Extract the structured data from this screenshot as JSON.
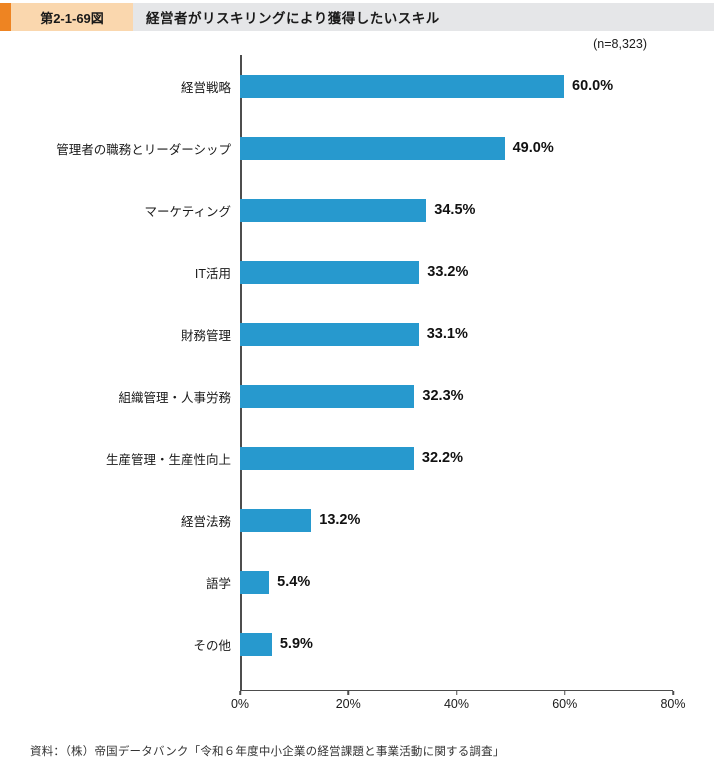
{
  "header": {
    "figure_label": "第2-1-69図",
    "title": "経営者がリスキリングにより獲得したいスキル"
  },
  "sample_note": "(n=8,323)",
  "chart_data": {
    "type": "bar",
    "orientation": "horizontal",
    "title": "経営者がリスキリングにより獲得したいスキル",
    "categories": [
      "経営戦略",
      "管理者の職務とリーダーシップ",
      "マーケティング",
      "IT活用",
      "財務管理",
      "組織管理・人事労務",
      "生産管理・生産性向上",
      "経営法務",
      "語学",
      "その他"
    ],
    "values": [
      60.0,
      49.0,
      34.5,
      33.2,
      33.1,
      32.3,
      32.2,
      13.2,
      5.4,
      5.9
    ],
    "value_labels": [
      "60.0%",
      "49.0%",
      "34.5%",
      "33.2%",
      "33.1%",
      "32.3%",
      "32.2%",
      "13.2%",
      "5.4%",
      "5.9%"
    ],
    "x_ticks": [
      "0%",
      "20%",
      "40%",
      "60%",
      "80%"
    ],
    "xlim": [
      0,
      80
    ],
    "grid": false,
    "legend": "none",
    "bar_color": "#2799ce"
  },
  "source": "資料：（株）帝国データバンク「令和６年度中小企業の経営課題と事業活動に関する調査」",
  "colors": {
    "accent_orange": "#ee8422",
    "label_box_bg": "#fad7ae",
    "header_bg": "#e5e6e8",
    "bar_blue": "#2799ce",
    "axis": "#4d4d4d"
  }
}
